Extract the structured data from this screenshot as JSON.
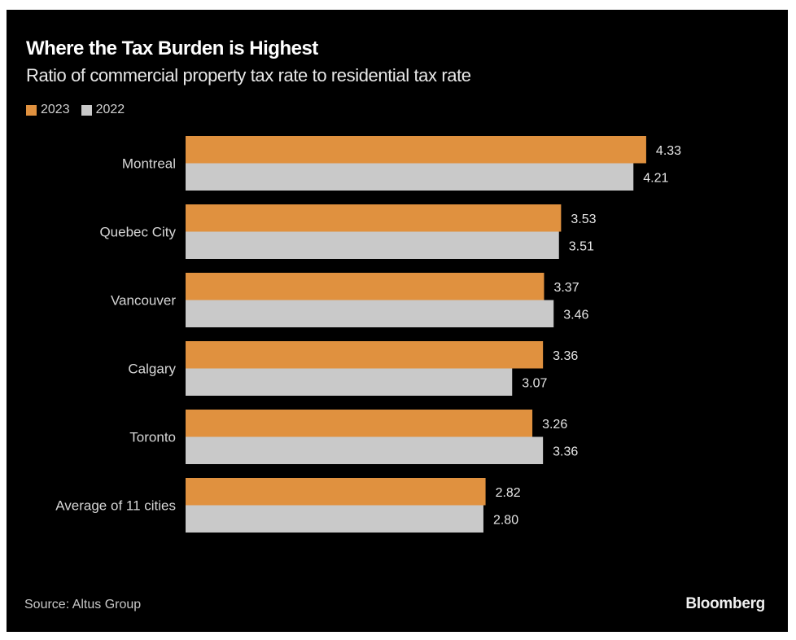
{
  "chart_data": {
    "type": "bar",
    "orientation": "horizontal",
    "title": "Where the Tax Burden is Highest",
    "subtitle": "Ratio of commercial property tax rate to residential tax rate",
    "categories": [
      "Montreal",
      "Quebec City",
      "Vancouver",
      "Calgary",
      "Toronto",
      "Average of 11 cities"
    ],
    "series": [
      {
        "name": "2023",
        "color": "#E0913F",
        "values": [
          4.33,
          3.53,
          3.37,
          3.36,
          3.26,
          2.82
        ]
      },
      {
        "name": "2022",
        "color": "#C9C9C9",
        "values": [
          4.21,
          3.51,
          3.46,
          3.07,
          3.36,
          2.8
        ]
      }
    ],
    "value_labels": [
      [
        "4.33",
        "3.53",
        "3.37",
        "3.36",
        "3.26",
        "2.82"
      ],
      [
        "4.21",
        "3.51",
        "3.46",
        "3.07",
        "3.36",
        "2.80"
      ]
    ],
    "xlabel": "",
    "ylabel": "",
    "xlim": [
      0,
      4.33
    ],
    "grid": false,
    "legend_position": "top-left",
    "source": "Source: Altus Group",
    "brand": "Bloomberg"
  },
  "colors": {
    "background": "#000000",
    "series_2023": "#E0913F",
    "series_2022": "#C9C9C9"
  }
}
